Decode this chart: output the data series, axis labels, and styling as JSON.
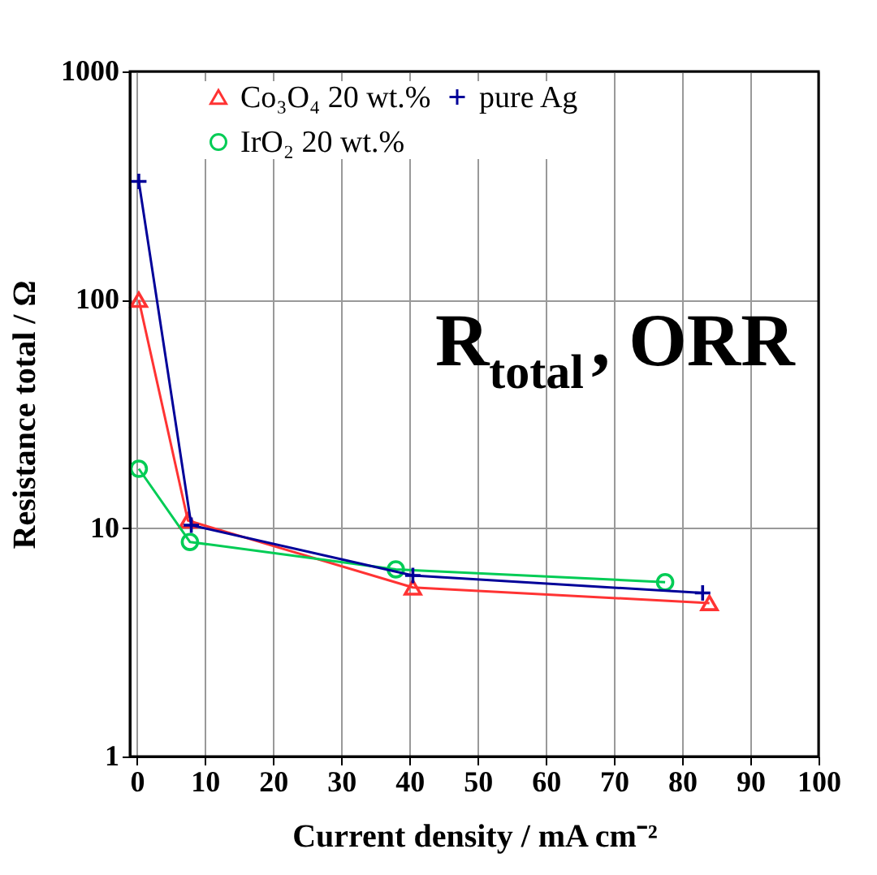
{
  "chart_data": {
    "type": "line",
    "xlabel": "Current density / mA cm⁻²",
    "ylabel": "Resistance total / Ω",
    "annotations": [
      "R$_{total}$, ORR"
    ],
    "series": [
      {
        "name": "Co₃O₄ 20 wt.%",
        "color": "#ff3333",
        "marker": "triangle",
        "x": [
          0.3,
          7.5,
          40.5,
          84
        ],
        "values": [
          100,
          10.8,
          5.5,
          4.7
        ]
      },
      {
        "name": "IrO₂ 20 wt.%",
        "color": "#00cc55",
        "marker": "circle",
        "x": [
          0.3,
          7.8,
          38,
          77.5
        ],
        "values": [
          18.2,
          8.7,
          6.6,
          5.8
        ]
      },
      {
        "name": "pure Ag",
        "color": "#000099",
        "marker": "cross",
        "x": [
          0.3,
          8,
          40.5,
          83
        ],
        "values": [
          330,
          10.3,
          6.2,
          5.2
        ]
      }
    ],
    "xlim": [
      -1,
      100
    ],
    "xticks": [
      0,
      10,
      20,
      30,
      40,
      50,
      60,
      70,
      80,
      90,
      100
    ],
    "ylim": [
      1,
      1000
    ],
    "yticks": [
      1,
      10,
      100,
      1000
    ],
    "log": "y",
    "grid": true,
    "legend": "top",
    "line_style": "solid"
  }
}
